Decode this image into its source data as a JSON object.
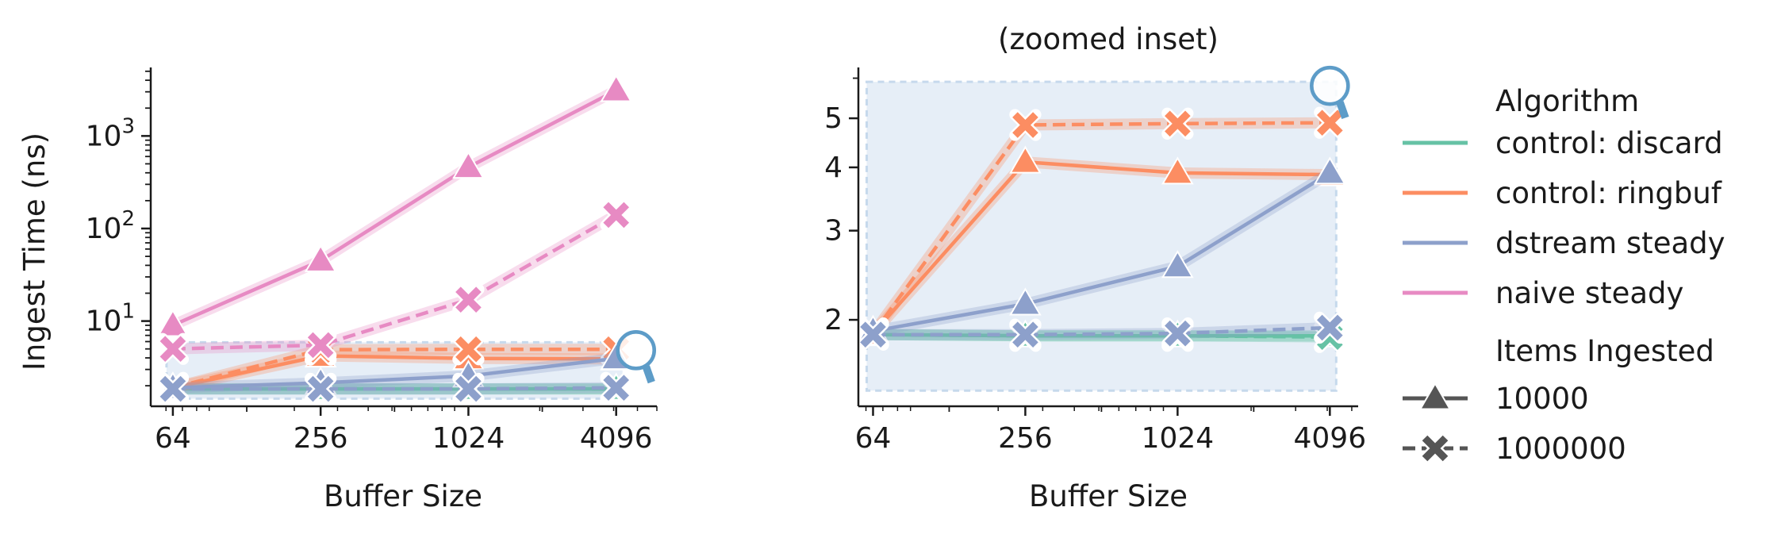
{
  "chart_data": [
    {
      "type": "line",
      "title": "",
      "xlabel": "Buffer Size",
      "ylabel": "Ingest Time (ns)",
      "x_scale": "log2",
      "y_scale": "log10",
      "x": [
        64,
        256,
        1024,
        4096
      ],
      "xticks": [
        "64",
        "256",
        "1024",
        "4096"
      ],
      "xlim": [
        52,
        6000
      ],
      "ylim": [
        1.2,
        5500
      ],
      "yticks": [
        {
          "base": "10",
          "exp": "1",
          "value": 10
        },
        {
          "base": "10",
          "exp": "2",
          "value": 100
        },
        {
          "base": "10",
          "exp": "3",
          "value": 1000
        }
      ],
      "series": [
        {
          "name": "control: discard",
          "items": "10000",
          "values": [
            1.85,
            1.85,
            1.85,
            1.85
          ]
        },
        {
          "name": "control: discard",
          "items": "1000000",
          "values": [
            1.85,
            1.85,
            1.85,
            1.85
          ]
        },
        {
          "name": "control: ringbuf",
          "items": "10000",
          "values": [
            1.9,
            4.2,
            3.95,
            3.9
          ]
        },
        {
          "name": "control: ringbuf",
          "items": "1000000",
          "values": [
            1.9,
            4.9,
            4.95,
            4.95
          ]
        },
        {
          "name": "dstream steady",
          "items": "10000",
          "values": [
            1.9,
            2.15,
            2.55,
            3.95
          ]
        },
        {
          "name": "dstream steady",
          "items": "1000000",
          "values": [
            1.85,
            1.85,
            1.85,
            1.9
          ]
        },
        {
          "name": "naive steady",
          "items": "10000",
          "values": [
            9,
            45,
            460,
            3100
          ]
        },
        {
          "name": "naive steady",
          "items": "1000000",
          "values": [
            5,
            5.5,
            17,
            140
          ]
        }
      ],
      "zoom_region": {
        "x": [
          64,
          4096
        ],
        "y": [
          1.45,
          5.9
        ]
      }
    },
    {
      "type": "line",
      "title": "(zoomed inset)",
      "xlabel": "Buffer Size",
      "ylabel": "",
      "x_scale": "log2",
      "y_scale": "log",
      "x": [
        64,
        256,
        1024,
        4096
      ],
      "xticks": [
        "64",
        "256",
        "1024",
        "4096"
      ],
      "xlim": [
        56,
        5300
      ],
      "ylim": [
        1.35,
        6.3
      ],
      "yticks": [
        {
          "label": "2",
          "value": 2
        },
        {
          "label": "3",
          "value": 3
        },
        {
          "label": "4",
          "value": 4
        },
        {
          "label": "5",
          "value": 5
        }
      ],
      "series": [
        {
          "name": "control: discard",
          "items": "10000",
          "values": [
            1.87,
            1.86,
            1.86,
            1.86
          ]
        },
        {
          "name": "control: discard",
          "items": "1000000",
          "values": [
            1.87,
            1.86,
            1.86,
            1.85
          ]
        },
        {
          "name": "control: ringbuf",
          "items": "10000",
          "values": [
            1.88,
            4.1,
            3.9,
            3.87
          ]
        },
        {
          "name": "control: ringbuf",
          "items": "1000000",
          "values": [
            1.88,
            4.85,
            4.88,
            4.9
          ]
        },
        {
          "name": "dstream steady",
          "items": "10000",
          "values": [
            1.9,
            2.15,
            2.55,
            3.9
          ]
        },
        {
          "name": "dstream steady",
          "items": "1000000",
          "values": [
            1.87,
            1.87,
            1.88,
            1.93
          ]
        }
      ],
      "zoom_region": {
        "x": [
          64,
          4096
        ],
        "y": [
          1.45,
          5.9
        ]
      }
    }
  ],
  "legend": {
    "placement": "right",
    "algorithm_title": "Algorithm",
    "algorithms": [
      {
        "label": "control: discard",
        "color": "#66c2a5"
      },
      {
        "label": "control: ringbuf",
        "color": "#fc8d62"
      },
      {
        "label": "dstream steady",
        "color": "#8da0cb"
      },
      {
        "label": "naive steady",
        "color": "#e78ac3"
      }
    ],
    "items_title": "Items Ingested",
    "items": [
      {
        "label": "10000",
        "marker": "triangle",
        "dash": "solid"
      },
      {
        "label": "1000000",
        "marker": "x",
        "dash": "dashed"
      }
    ]
  },
  "colors": {
    "control: discard": "#66c2a5",
    "control: ringbuf": "#fc8d62",
    "dstream steady": "#8da0cb",
    "naive steady": "#e78ac3",
    "zoom_fill": "#e6eef7",
    "zoom_edge": "#c6d9ec",
    "magnifier": "#5d9cc8",
    "legend_marker": "#555555"
  },
  "icons": [
    "magnifier-icon"
  ]
}
